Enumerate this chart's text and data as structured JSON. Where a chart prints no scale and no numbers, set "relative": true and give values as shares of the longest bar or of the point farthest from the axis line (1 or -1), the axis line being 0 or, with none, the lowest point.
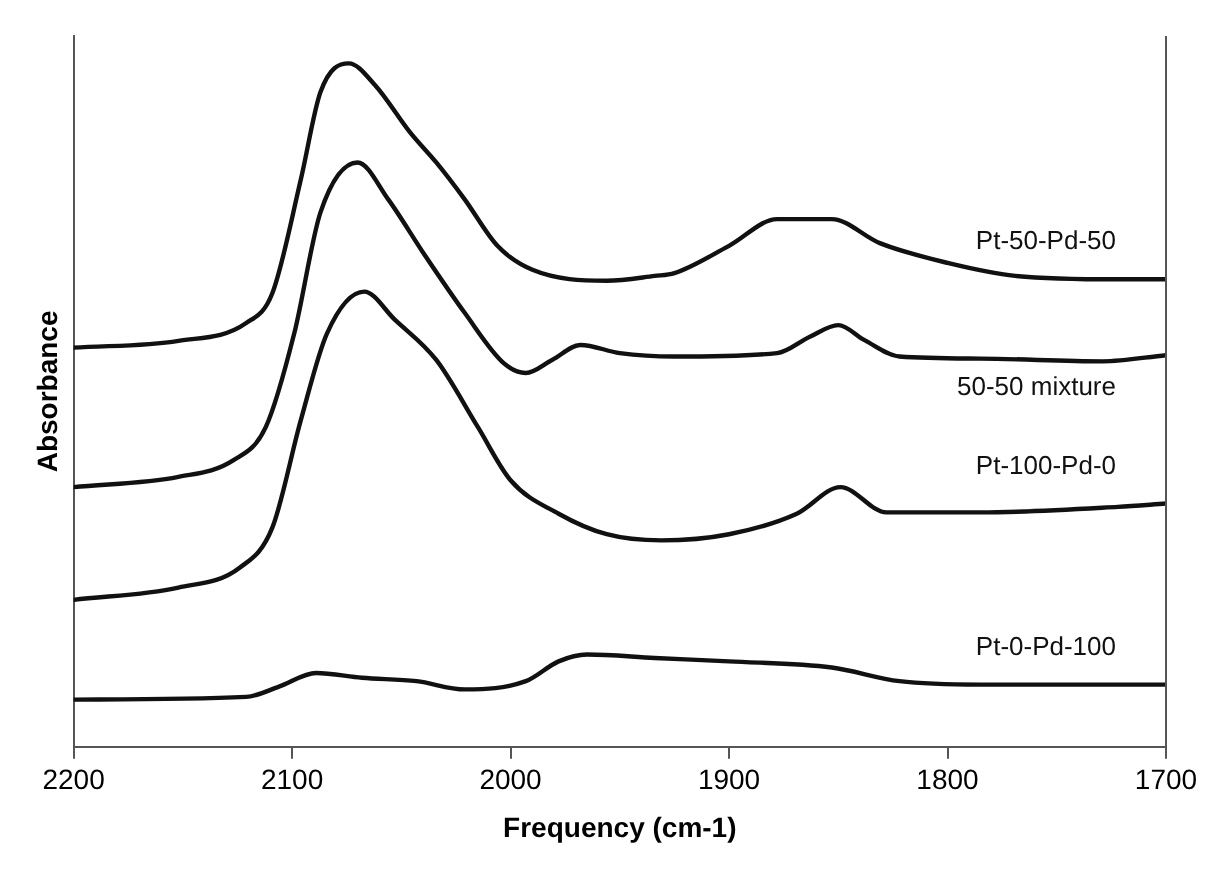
{
  "chart_data": {
    "type": "line",
    "xlabel": "Frequency (cm-1)",
    "ylabel": "Absorbance",
    "relative": true,
    "xlim": [
      2200,
      1700
    ],
    "xticks": [
      2200,
      2100,
      2000,
      1900,
      1800,
      1700
    ],
    "grid": false,
    "legend": false,
    "marker": "none",
    "line_style": "solid",
    "series": [
      {
        "name": "Pt-50-Pd-50",
        "color": "#111111",
        "x": [
          2200,
          2152,
          2121,
          2109,
          2096,
          2087,
          2074,
          2062,
          2046,
          2034,
          2021,
          2006,
          1990,
          1956,
          1934,
          1925,
          1900,
          1878,
          1853,
          1831,
          1800,
          1769,
          1722,
          1700
        ],
        "values": [
          0.584,
          0.594,
          0.62,
          0.664,
          0.83,
          0.958,
          1.0,
          0.968,
          0.899,
          0.855,
          0.801,
          0.733,
          0.698,
          0.682,
          0.689,
          0.693,
          0.733,
          0.772,
          0.772,
          0.737,
          0.708,
          0.689,
          0.684,
          0.684
        ]
      },
      {
        "name": "50-50 mixture",
        "color": "#111111",
        "x": [
          2200,
          2152,
          2127,
          2112,
          2099,
          2087,
          2070,
          2056,
          2040,
          2021,
          2003,
          1993,
          1981,
          1968,
          1950,
          1925,
          1878,
          1863,
          1850,
          1838,
          1822,
          1785,
          1729,
          1700
        ],
        "values": [
          0.38,
          0.395,
          0.419,
          0.468,
          0.605,
          0.782,
          0.855,
          0.801,
          0.723,
          0.635,
          0.561,
          0.547,
          0.566,
          0.588,
          0.576,
          0.571,
          0.576,
          0.6,
          0.617,
          0.595,
          0.571,
          0.568,
          0.564,
          0.573
        ]
      },
      {
        "name": "Pt-100-Pd-0",
        "color": "#111111",
        "x": [
          2200,
          2152,
          2124,
          2109,
          2096,
          2084,
          2067,
          2053,
          2034,
          2015,
          2000,
          1978,
          1956,
          1931,
          1900,
          1869,
          1849,
          1828,
          1785,
          1722,
          1700
        ],
        "values": [
          0.215,
          0.233,
          0.262,
          0.321,
          0.478,
          0.605,
          0.666,
          0.625,
          0.566,
          0.468,
          0.39,
          0.341,
          0.311,
          0.302,
          0.311,
          0.341,
          0.38,
          0.343,
          0.343,
          0.351,
          0.356
        ]
      },
      {
        "name": "Pt-0-Pd-100",
        "color": "#111111",
        "x": [
          2200,
          2121,
          2106,
          2089,
          2068,
          2043,
          2021,
          1993,
          1978,
          1965,
          1934,
          1900,
          1853,
          1822,
          1785,
          1700
        ],
        "values": [
          0.069,
          0.073,
          0.088,
          0.108,
          0.101,
          0.096,
          0.084,
          0.096,
          0.125,
          0.135,
          0.13,
          0.125,
          0.116,
          0.096,
          0.091,
          0.091
        ]
      }
    ]
  }
}
